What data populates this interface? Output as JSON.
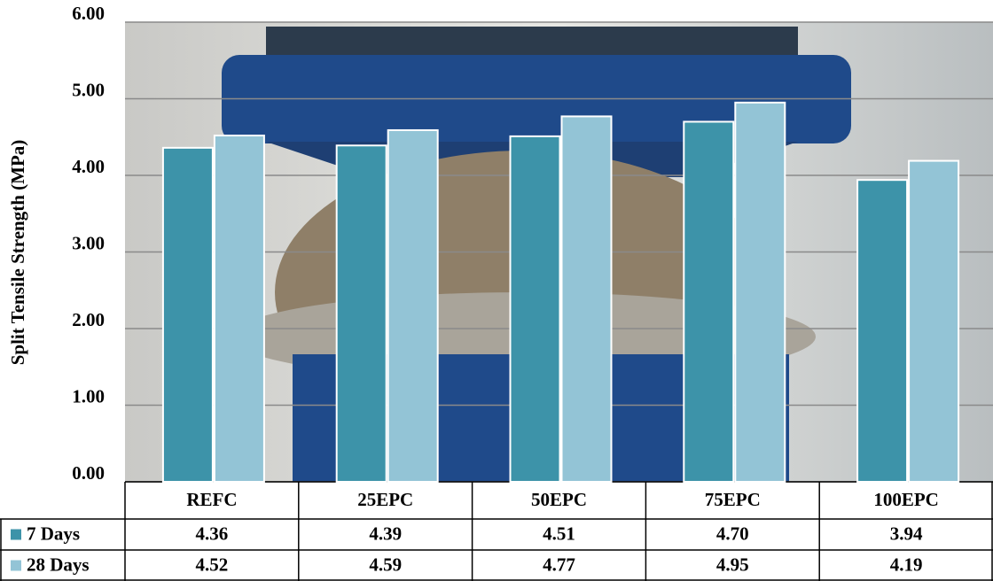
{
  "chart_data": {
    "type": "bar",
    "y_label": "Split Tensile Strength (MPa)",
    "categories": [
      "REFC",
      "25EPC",
      "50EPC",
      "75EPC",
      "100EPC"
    ],
    "series": [
      {
        "name": "7 Days",
        "color": "#3d93a9",
        "values": [
          4.36,
          4.39,
          4.51,
          4.7,
          3.94
        ],
        "value_labels": [
          "4.36",
          "4.39",
          "4.51",
          "4.70",
          "3.94"
        ]
      },
      {
        "name": "28 Days",
        "color": "#93c4d6",
        "values": [
          4.52,
          4.59,
          4.77,
          4.95,
          4.19
        ],
        "value_labels": [
          "4.52",
          "4.59",
          "4.77",
          "4.95",
          "4.19"
        ]
      }
    ],
    "ylim": [
      0,
      6
    ],
    "yticks": [
      {
        "value": 0,
        "label": "0.00"
      },
      {
        "value": 1,
        "label": "1.00"
      },
      {
        "value": 2,
        "label": "2.00"
      },
      {
        "value": 3,
        "label": "3.00"
      },
      {
        "value": 4,
        "label": "4.00"
      },
      {
        "value": 5,
        "label": "5.00"
      },
      {
        "value": 6,
        "label": "6.00"
      }
    ],
    "grid": true
  }
}
